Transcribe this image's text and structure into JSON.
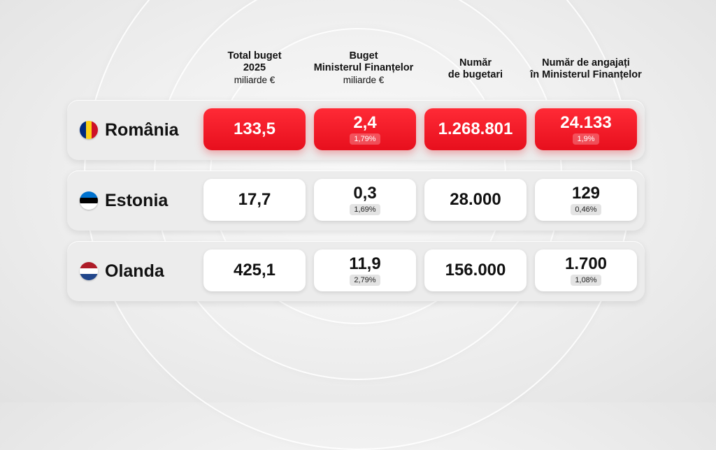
{
  "headers": [
    {
      "lines": [
        "Total  buget",
        "2025"
      ],
      "unit": "miliarde €"
    },
    {
      "lines": [
        "Buget",
        "Ministerul Finanțelor"
      ],
      "unit": "miliarde €"
    },
    {
      "lines": [
        "Număr",
        "de bugetari"
      ],
      "unit": ""
    },
    {
      "lines": [
        "Număr  de angajați",
        "în Ministerul Finanțelor"
      ],
      "unit": ""
    }
  ],
  "rows": [
    {
      "country": "România",
      "flag_colors": [
        "#002B7F",
        "#FCD116",
        "#CE1126"
      ],
      "flag_orientation": "vertical",
      "highlight": true,
      "total_budget": "133,5",
      "ministry_budget": "2,4",
      "ministry_budget_pct": "1,79%",
      "public_employees": "1.268.801",
      "ministry_employees": "24.133",
      "ministry_employees_pct": "1,9%"
    },
    {
      "country": "Estonia",
      "flag_colors": [
        "#0072CE",
        "#000000",
        "#FFFFFF"
      ],
      "flag_orientation": "horizontal",
      "highlight": false,
      "total_budget": "17,7",
      "ministry_budget": "0,3",
      "ministry_budget_pct": "1,69%",
      "public_employees": "28.000",
      "ministry_employees": "129",
      "ministry_employees_pct": "0,46%"
    },
    {
      "country": "Olanda",
      "flag_colors": [
        "#AE1C28",
        "#FFFFFF",
        "#21468B"
      ],
      "flag_orientation": "horizontal",
      "highlight": false,
      "total_budget": "425,1",
      "ministry_budget": "11,9",
      "ministry_budget_pct": "2,79%",
      "public_employees": "156.000",
      "ministry_employees": "1.700",
      "ministry_employees_pct": "1,08%"
    }
  ]
}
